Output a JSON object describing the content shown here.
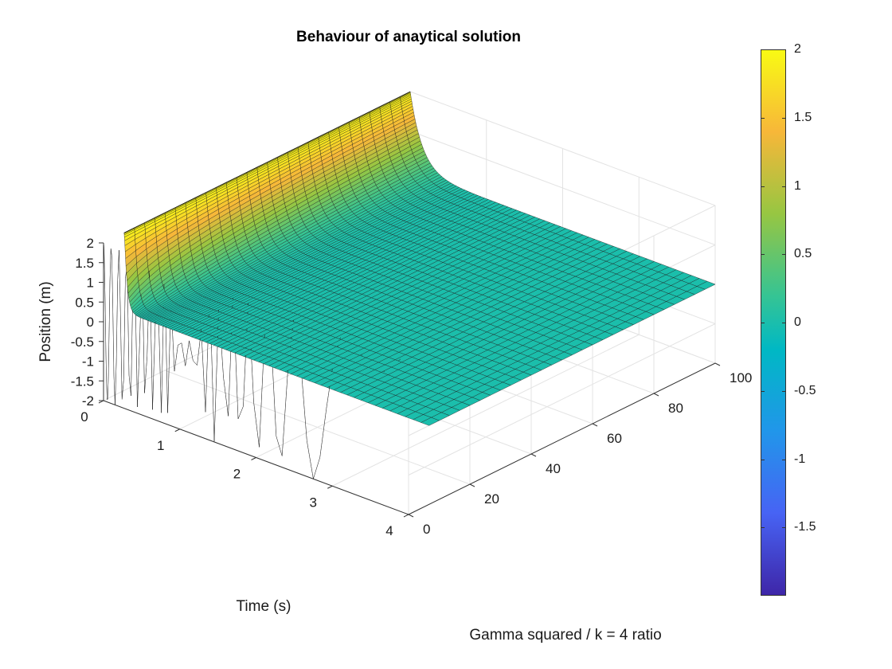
{
  "chart_data": {
    "type": "surface",
    "title": "Behaviour of anaytical solution",
    "xlabel": "Time (s)",
    "ylabel": "Gamma squared / k = 4 ratio",
    "zlabel": "Position (m)",
    "x_ticks": [
      "0",
      "1",
      "2",
      "3",
      "4"
    ],
    "y_ticks": [
      "0",
      "20",
      "40",
      "60",
      "80",
      "100"
    ],
    "z_ticks": [
      "2",
      "1.5",
      "1",
      "0.5",
      "0",
      "-0.5",
      "-1",
      "-1.5",
      "-2"
    ],
    "xlim": [
      0,
      4
    ],
    "ylim": [
      0,
      100
    ],
    "zlim": [
      -2,
      2
    ],
    "colorbar_ticks": [
      "2",
      "1.5",
      "1",
      "0.5",
      "0",
      "-0.5",
      "-1",
      "-1.5"
    ],
    "colorbar_range": [
      -2,
      2
    ],
    "colormap": "parula",
    "surface": "x(t, r) = 2 at t = 0; underdamped cosine oscillation for small r decaying to 0 within ~0.2 s; overdamped slow decay toward 0 for large r (≈2 at r = 100 near t = 0)",
    "grid": true
  }
}
